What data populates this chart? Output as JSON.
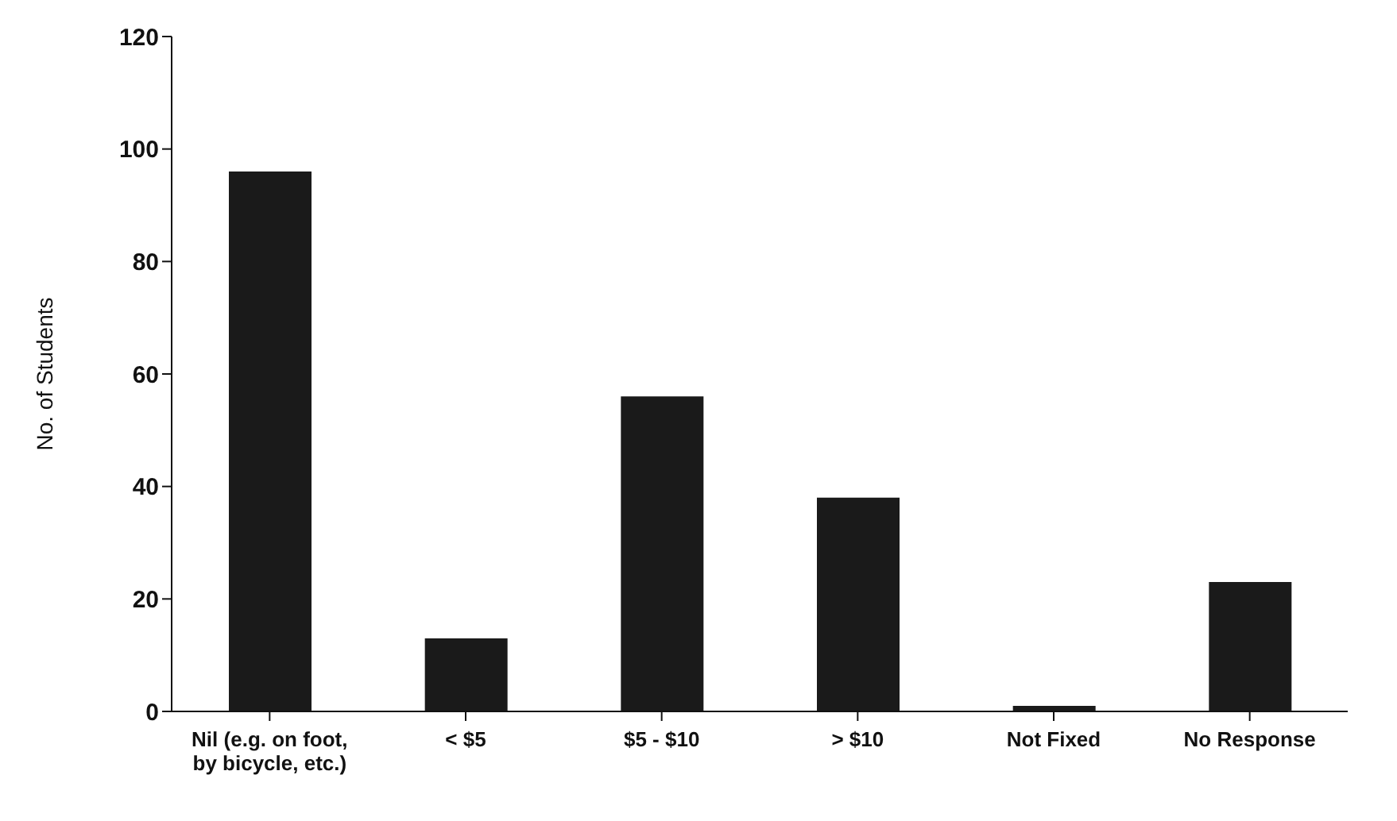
{
  "chart_data": {
    "type": "bar",
    "ylabel": "No. of Students",
    "categories": [
      "Nil (e.g. on foot, by bicycle, etc.)",
      "< $5",
      "$5 - $10",
      "> $10",
      "Not Fixed",
      "No Response"
    ],
    "values": [
      96,
      13,
      56,
      38,
      1,
      23
    ],
    "color": "#1a1a1a",
    "ylim": [
      0,
      120
    ],
    "yticks": [
      0,
      20,
      40,
      60,
      80,
      100,
      120
    ],
    "grid": false
  }
}
